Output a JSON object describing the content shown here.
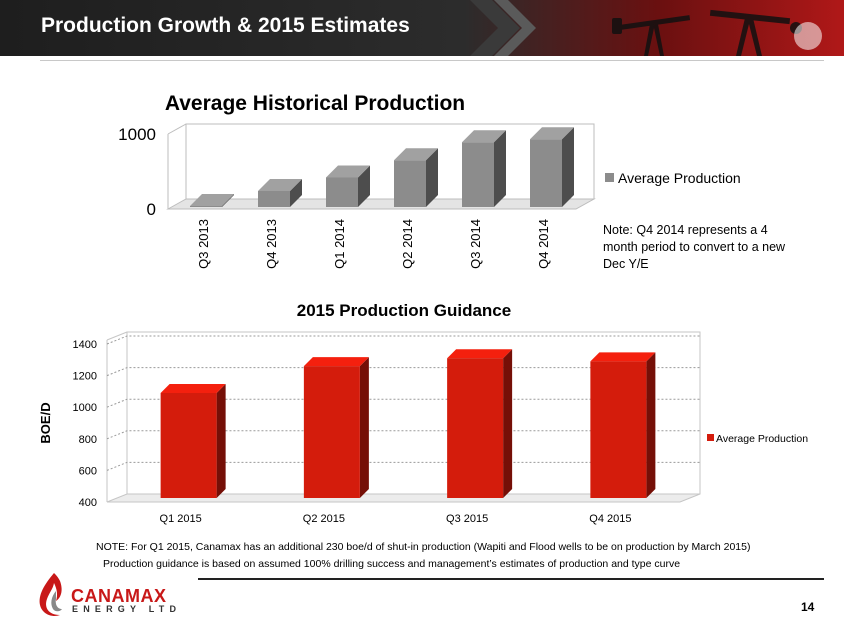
{
  "header": {
    "title": "Production Growth & 2015 Estimates"
  },
  "note_q4": "Note: Q4 2014 represents a 4 month period to convert to a new Dec Y/E",
  "footnotes": [
    "NOTE:  For Q1 2015, Canamax has an additional 230 boe/d of shut-in production (Wapiti and Flood wells to be on production by March 2015)",
    "Production guidance is based on assumed 100% drilling success and management’s estimates of production and type curve"
  ],
  "logo": {
    "name": "CANAMAX",
    "sub": "ENERGY LTD"
  },
  "page_number": "14",
  "colors": {
    "header_red": "#b01818",
    "historical_bar": "#8c8c8c",
    "guidance_bar": "#d41c0c"
  },
  "chart_data": [
    {
      "type": "bar",
      "title": "Average Historical Production",
      "categories": [
        "Q3 2013",
        "Q4 2013",
        "Q1 2014",
        "Q2 2014",
        "Q3 2014",
        "Q4 2014"
      ],
      "series": [
        {
          "name": "Average Production",
          "values": [
            0,
            240,
            420,
            650,
            890,
            930
          ]
        }
      ],
      "ylim": [
        0,
        1000
      ],
      "yticks": [
        "0",
        "1000"
      ],
      "legend": "right",
      "grid": false
    },
    {
      "type": "bar",
      "title": "2015 Production Guidance",
      "categories": [
        "Q1 2015",
        "Q2 2015",
        "Q3 2015",
        "Q4 2015"
      ],
      "series": [
        {
          "name": "Average Production",
          "values": [
            1090,
            1260,
            1310,
            1290
          ]
        }
      ],
      "ylabel": "BOE/D",
      "ylim": [
        400,
        1400
      ],
      "yticks": [
        "400",
        "600",
        "800",
        "1000",
        "1200",
        "1400"
      ],
      "legend": "right",
      "grid": true
    }
  ]
}
